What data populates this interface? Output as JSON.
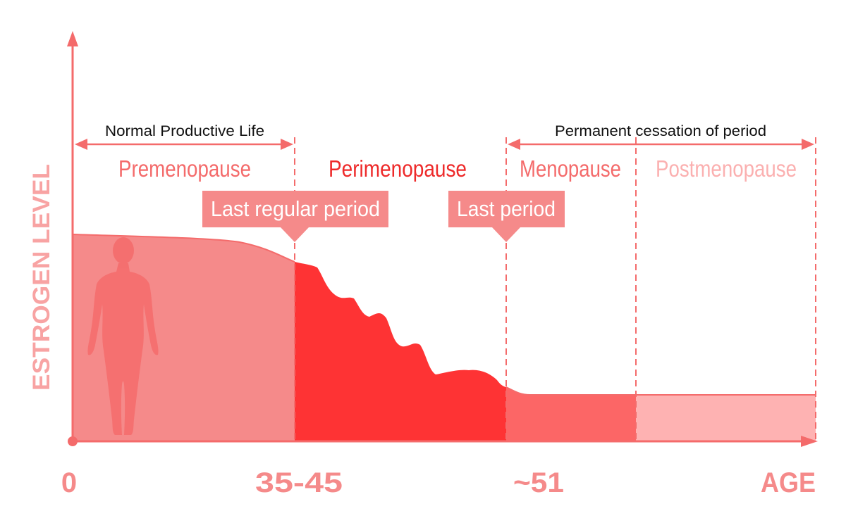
{
  "axes": {
    "y_label": "ESTROGEN LEVEL",
    "x_label": "AGE",
    "x_ticks": [
      "0",
      "35-45",
      "~51"
    ]
  },
  "spans": {
    "normal_life": "Normal Productive Life",
    "permanent_cessation": "Permanent cessation of period"
  },
  "phases": [
    {
      "label": "Premenopause",
      "color": "#f46b6b",
      "fill": "#f58a8a"
    },
    {
      "label": "Perimenopause",
      "color": "#ee2a2a",
      "fill": "#fe3334"
    },
    {
      "label": "Menopause",
      "color": "#f46b6b",
      "fill": "#fc6666"
    },
    {
      "label": "Postmenopause",
      "color": "#fbb0b0",
      "fill": "#feb2b2"
    }
  ],
  "callouts": {
    "last_regular_period": "Last regular period",
    "last_period": "Last period"
  },
  "colors": {
    "axis": "#f46b6b",
    "tick_text": "#f58a8a",
    "y_label": "#f8a3a3",
    "callout_bg": "#f58a8a",
    "figure": "#f46b6b",
    "dash": "#f46b6b"
  },
  "icons": {
    "figure": "female-silhouette-icon"
  }
}
